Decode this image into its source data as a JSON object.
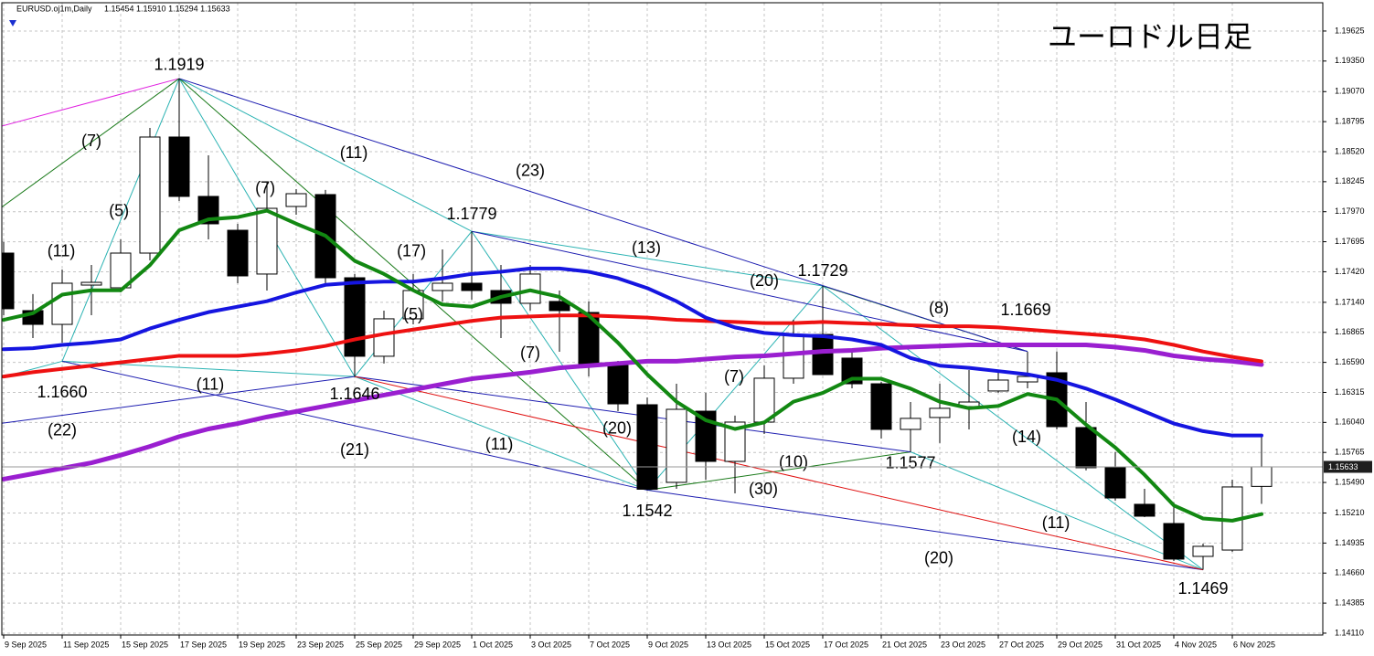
{
  "chart_data": {
    "type": "candlestick",
    "header": {
      "symbol": "EURUSD.oj1m,Daily",
      "ohlc": "1.15454 1.15910 1.15294 1.15633"
    },
    "title": "ユーロドル日足",
    "categories": [
      "9 Sep 2025",
      null,
      "11 Sep 2025",
      null,
      "15 Sep 2025",
      null,
      "17 Sep 2025",
      null,
      "19 Sep 2025",
      null,
      "23 Sep 2025",
      null,
      "25 Sep 2025",
      null,
      "29 Sep 2025",
      null,
      "1 Oct 2025",
      null,
      "3 Oct 2025",
      null,
      "7 Oct 2025",
      null,
      "9 Oct 2025",
      null,
      "13 Oct 2025",
      null,
      "15 Oct 2025",
      null,
      "17 Oct 2025",
      null,
      "21 Oct 2025",
      null,
      "23 Oct 2025",
      null,
      "27 Oct 2025",
      null,
      "29 Oct 2025",
      null,
      "31 Oct 2025",
      null,
      "4 Nov 2025",
      null,
      "6 Nov 2025",
      null
    ],
    "open": [
      1.17591,
      1.17064,
      1.16938,
      1.17298,
      1.17273,
      1.17591,
      1.18654,
      1.1811,
      1.178,
      1.17399,
      1.18018,
      1.18127,
      1.17365,
      1.16646,
      1.16989,
      1.17248,
      1.17315,
      1.17248,
      1.17131,
      1.17148,
      1.17047,
      1.16562,
      1.16202,
      1.15491,
      1.16143,
      1.15683,
      1.16043,
      1.16445,
      1.16846,
      1.16629,
      1.16394,
      1.15976,
      1.16085,
      1.16185,
      1.16328,
      1.16411,
      1.16495,
      1.15993,
      1.15625,
      1.1529,
      1.15114,
      1.14813,
      1.14871,
      1.15454
    ],
    "high": [
      1.17692,
      1.17215,
      1.1744,
      1.17482,
      1.17717,
      1.18737,
      1.1919,
      1.18486,
      1.17859,
      1.18235,
      1.18177,
      1.18169,
      1.17399,
      1.17064,
      1.17399,
      1.17625,
      1.1779,
      1.17482,
      1.17482,
      1.17248,
      1.17148,
      1.16604,
      1.16269,
      1.16394,
      1.16311,
      1.16102,
      1.16562,
      1.1698,
      1.1729,
      1.16687,
      1.16411,
      1.16227,
      1.16394,
      1.1652,
      1.1652,
      1.16687,
      1.1669,
      1.16227,
      1.1577,
      1.15432,
      1.15307,
      1.1493,
      1.15516,
      1.1591
    ],
    "low": [
      1.17022,
      1.16813,
      1.16771,
      1.17022,
      1.17231,
      1.17524,
      1.18068,
      1.17717,
      1.17315,
      1.17248,
      1.17943,
      1.17315,
      1.1646,
      1.16579,
      1.16938,
      1.17148,
      1.17164,
      1.16813,
      1.17064,
      1.16687,
      1.16461,
      1.16143,
      1.1542,
      1.15432,
      1.15516,
      1.1539,
      1.15934,
      1.16394,
      1.16478,
      1.16353,
      1.15892,
      1.1577,
      1.15851,
      1.15976,
      1.16311,
      1.16353,
      1.15976,
      1.156,
      1.15323,
      1.15173,
      1.14771,
      1.1469,
      1.14855,
      1.15294
    ],
    "close": [
      1.17081,
      1.16938,
      1.17315,
      1.17323,
      1.17591,
      1.18654,
      1.1811,
      1.17859,
      1.17382,
      1.18001,
      1.18135,
      1.17365,
      1.16646,
      1.16989,
      1.17248,
      1.17315,
      1.17248,
      1.17131,
      1.17399,
      1.17064,
      1.16562,
      1.1621,
      1.15428,
      1.1616,
      1.15683,
      1.16043,
      1.16445,
      1.16846,
      1.16478,
      1.16394,
      1.15976,
      1.16077,
      1.16169,
      1.16227,
      1.16428,
      1.16461,
      1.16001,
      1.15625,
      1.15348,
      1.15181,
      1.14788,
      1.14905,
      1.15449,
      1.15633
    ],
    "up_color": "#ffffff",
    "down_color": "#000000",
    "moving_averages": [
      {
        "color": "#9a1fd0",
        "width": 5,
        "values": [
          1.1552,
          1.1557,
          1.1562,
          1.1567,
          1.1574,
          1.1582,
          1.1591,
          1.1598,
          1.1603,
          1.1609,
          1.1614,
          1.1619,
          1.1624,
          1.1629,
          1.1634,
          1.1639,
          1.1644,
          1.1647,
          1.165,
          1.1654,
          1.1656,
          1.1658,
          1.166,
          1.166,
          1.1662,
          1.1664,
          1.1665,
          1.1667,
          1.1669,
          1.167,
          1.1672,
          1.1673,
          1.1674,
          1.1675,
          1.1675,
          1.1675,
          1.1675,
          1.1675,
          1.1673,
          1.167,
          1.1665,
          1.1662,
          1.166,
          1.1657
        ]
      },
      {
        "color": "#ee1111",
        "width": 4,
        "values": [
          1.1646,
          1.165,
          1.1653,
          1.1656,
          1.1659,
          1.1662,
          1.1665,
          1.1665,
          1.1665,
          1.1667,
          1.167,
          1.1674,
          1.168,
          1.1685,
          1.1689,
          1.1693,
          1.1697,
          1.17,
          1.1701,
          1.1702,
          1.1702,
          1.1701,
          1.17,
          1.1698,
          1.1697,
          1.1696,
          1.1695,
          1.1695,
          1.1696,
          1.1695,
          1.1694,
          1.1693,
          1.1692,
          1.1692,
          1.1691,
          1.1689,
          1.1687,
          1.1685,
          1.1683,
          1.168,
          1.1675,
          1.1669,
          1.1664,
          1.166
        ]
      },
      {
        "color": "#1515e0",
        "width": 4,
        "values": [
          1.1671,
          1.1672,
          1.1675,
          1.1677,
          1.168,
          1.169,
          1.1698,
          1.1705,
          1.171,
          1.1715,
          1.1723,
          1.173,
          1.1732,
          1.1733,
          1.1733,
          1.1736,
          1.174,
          1.1742,
          1.1745,
          1.1745,
          1.1742,
          1.1736,
          1.1727,
          1.1715,
          1.17,
          1.1691,
          1.1686,
          1.1684,
          1.1683,
          1.168,
          1.1675,
          1.1663,
          1.1656,
          1.1654,
          1.1651,
          1.1648,
          1.1643,
          1.1635,
          1.1625,
          1.1614,
          1.1603,
          1.1596,
          1.1592,
          1.1592
        ]
      },
      {
        "color": "#128812",
        "width": 4,
        "values": [
          1.1698,
          1.1704,
          1.1721,
          1.1725,
          1.1725,
          1.1748,
          1.178,
          1.179,
          1.1792,
          1.1798,
          1.1786,
          1.1775,
          1.1752,
          1.174,
          1.1725,
          1.1712,
          1.171,
          1.1719,
          1.1725,
          1.1719,
          1.1702,
          1.1677,
          1.1648,
          1.1623,
          1.1606,
          1.1598,
          1.1604,
          1.1623,
          1.1631,
          1.1644,
          1.1644,
          1.1635,
          1.1623,
          1.1617,
          1.1619,
          1.163,
          1.1625,
          1.1602,
          1.1581,
          1.1556,
          1.1528,
          1.1516,
          1.1514,
          1.152
        ]
      }
    ],
    "trend_lines": [
      {
        "color": "#e020e0",
        "segments": [
          [
            -0.125,
            1.1875,
            6,
            1.1919
          ]
        ]
      },
      {
        "color": "#2bb3b3",
        "segments": [
          [
            -0.125,
            1.1645,
            2,
            1.166
          ],
          [
            2,
            1.166,
            6,
            1.1919
          ],
          [
            6,
            1.1919,
            12,
            1.1646
          ],
          [
            6,
            1.1919,
            16,
            1.1779
          ],
          [
            12,
            1.1646,
            16,
            1.1779
          ],
          [
            16,
            1.1779,
            22,
            1.1542
          ],
          [
            16,
            1.1779,
            28,
            1.1729
          ],
          [
            12,
            1.1646,
            22,
            1.1542
          ],
          [
            22,
            1.1542,
            28,
            1.1729
          ],
          [
            28,
            1.1729,
            41,
            1.1469
          ],
          [
            31,
            1.1577,
            41,
            1.1469
          ],
          [
            2,
            1.166,
            12,
            1.1646
          ]
        ]
      },
      {
        "color": "#1a7a1a",
        "segments": [
          [
            -0.125,
            1.18,
            6,
            1.1919
          ],
          [
            6,
            1.1919,
            22,
            1.1542
          ],
          [
            22,
            1.1542,
            31,
            1.1577
          ],
          [
            28,
            1.1729,
            35,
            1.1669
          ]
        ]
      },
      {
        "color": "#1c1cb0",
        "segments": [
          [
            6,
            1.1919,
            35,
            1.1669
          ],
          [
            16,
            1.1779,
            35,
            1.1669
          ],
          [
            2,
            1.166,
            22,
            1.1542
          ],
          [
            22,
            1.1542,
            41,
            1.1469
          ],
          [
            -0.125,
            1.1603,
            12,
            1.1646
          ],
          [
            12,
            1.1646,
            31,
            1.1577
          ]
        ]
      },
      {
        "color": "#e01010",
        "segments": [
          [
            12,
            1.1646,
            41,
            1.1469
          ]
        ]
      }
    ],
    "annotations": [
      {
        "text": "1.1919",
        "x": 6,
        "y": 1.1931
      },
      {
        "text": "1.1779",
        "x": 16,
        "y": 1.1794
      },
      {
        "text": "1.1729",
        "x": 28,
        "y": 1.1742
      },
      {
        "text": "1.1669",
        "x": 34.94,
        "y": 1.1706
      },
      {
        "text": "1.1660",
        "x": 2,
        "y": 1.1631
      },
      {
        "text": "1.1646",
        "x": 12,
        "y": 1.1629
      },
      {
        "text": "1.1542",
        "x": 22,
        "y": 1.1522
      },
      {
        "text": "1.1577",
        "x": 31,
        "y": 1.1566
      },
      {
        "text": "1.1469",
        "x": 41,
        "y": 1.1451
      },
      {
        "text": "(7)",
        "x": 3,
        "y": 1.1861
      },
      {
        "text": "(5)",
        "x": 3.94,
        "y": 1.1797
      },
      {
        "text": "(11)",
        "x": 1.97,
        "y": 1.176
      },
      {
        "text": "(7)",
        "x": 8.94,
        "y": 1.1818
      },
      {
        "text": "(11)",
        "x": 11.97,
        "y": 1.185
      },
      {
        "text": "(23)",
        "x": 18,
        "y": 1.1834
      },
      {
        "text": "(17)",
        "x": 13.94,
        "y": 1.176
      },
      {
        "text": "(13)",
        "x": 21.97,
        "y": 1.1763
      },
      {
        "text": "(20)",
        "x": 26,
        "y": 1.1733
      },
      {
        "text": "(8)",
        "x": 31.97,
        "y": 1.1708
      },
      {
        "text": "(5)",
        "x": 14,
        "y": 1.1702
      },
      {
        "text": "(7)",
        "x": 18,
        "y": 1.1667
      },
      {
        "text": "(7)",
        "x": 24.97,
        "y": 1.1645
      },
      {
        "text": "(11)",
        "x": 7.06,
        "y": 1.1638
      },
      {
        "text": "(22)",
        "x": 2,
        "y": 1.1596
      },
      {
        "text": "(21)",
        "x": 12,
        "y": 1.1578
      },
      {
        "text": "(11)",
        "x": 16.94,
        "y": 1.1583
      },
      {
        "text": "(20)",
        "x": 20.97,
        "y": 1.1598
      },
      {
        "text": "(10)",
        "x": 27,
        "y": 1.1567
      },
      {
        "text": "(30)",
        "x": 25.97,
        "y": 1.1542
      },
      {
        "text": "(14)",
        "x": 34.97,
        "y": 1.159
      },
      {
        "text": "(11)",
        "x": 35.97,
        "y": 1.1511
      },
      {
        "text": "(20)",
        "x": 31.97,
        "y": 1.1479
      }
    ],
    "last_price": 1.15633,
    "ylim": [
      1.14093,
      1.19884
    ],
    "yticks": [
      1.19625,
      {
        "value": 1.1935,
        "label": "1.19350"
      },
      {
        "value": 1.1907,
        "label": "1.19070"
      },
      1.18795,
      {
        "value": 1.1852,
        "label": "1.18520"
      },
      1.18245,
      {
        "value": 1.1797,
        "label": "1.17970"
      },
      1.17695,
      {
        "value": 1.1742,
        "label": "1.17420"
      },
      {
        "value": 1.1714,
        "label": "1.17140"
      },
      1.16865,
      {
        "value": 1.1659,
        "label": "1.16590"
      },
      1.16315,
      {
        "value": 1.1604,
        "label": "1.16040"
      },
      1.15765,
      {
        "value": 1.1549,
        "label": "1.15490"
      },
      {
        "value": 1.1521,
        "label": "1.15210"
      },
      1.14935,
      {
        "value": 1.1466,
        "label": "1.14660"
      },
      1.14385,
      {
        "value": 1.1411,
        "label": "1.14110"
      }
    ],
    "grid": true
  }
}
